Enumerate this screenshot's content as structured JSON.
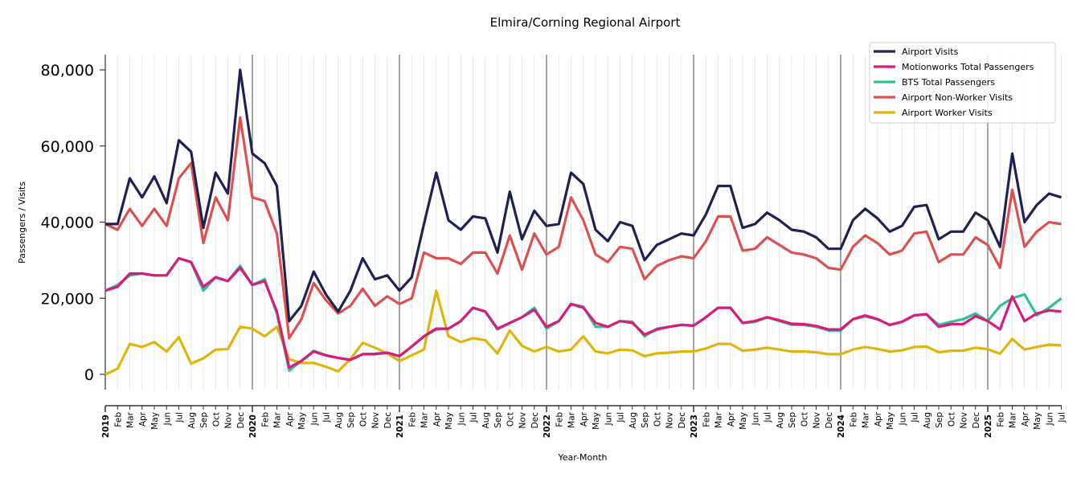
{
  "chart_data": {
    "type": "line",
    "title": "Elmira/Corning Regional Airport",
    "xlabel": "Year-Month",
    "ylabel": "Passengers / Visits",
    "ylim": [
      -8000,
      84000
    ],
    "yticks": [
      0,
      20000,
      40000,
      60000,
      80000
    ],
    "ytick_labels": [
      "0",
      "20,000",
      "40,000",
      "60,000",
      "80,000"
    ],
    "grid": "vertical monthly",
    "legend_position": "top-right",
    "x_labels": [
      "2019",
      "Feb",
      "Mar",
      "Apr",
      "May",
      "Jun",
      "Jul",
      "Aug",
      "Sep",
      "Oct",
      "Nov",
      "Dec",
      "2020",
      "Feb",
      "Mar",
      "Apr",
      "May",
      "Jun",
      "Jul",
      "Aug",
      "Sep",
      "Oct",
      "Nov",
      "Dec",
      "2021",
      "Feb",
      "Mar",
      "Apr",
      "May",
      "Jun",
      "Jul",
      "Aug",
      "Sep",
      "Oct",
      "Nov",
      "Dec",
      "2022",
      "Feb",
      "Mar",
      "Apr",
      "May",
      "Jun",
      "Jul",
      "Aug",
      "Sep",
      "Oct",
      "Nov",
      "Dec",
      "2023",
      "Feb",
      "Mar",
      "Apr",
      "May",
      "Jun",
      "Jul",
      "Aug",
      "Sep",
      "Oct",
      "Nov",
      "Dec",
      "2024",
      "Feb",
      "Mar",
      "Apr",
      "May",
      "Jun",
      "Jul",
      "Aug",
      "Sep",
      "Oct",
      "Nov",
      "Dec",
      "2025",
      "Feb",
      "Mar",
      "Apr",
      "May",
      "Jun",
      "Jul"
    ],
    "series": [
      {
        "name": "Airport Visits",
        "color": "#1f2150",
        "values": [
          39500,
          39500,
          51500,
          46500,
          52000,
          45000,
          61500,
          58500,
          38500,
          53000,
          47500,
          80000,
          58000,
          55500,
          49500,
          14000,
          18000,
          27000,
          21000,
          16500,
          22000,
          30500,
          25000,
          26000,
          22000,
          25500,
          39500,
          53000,
          40500,
          38000,
          41500,
          41000,
          32000,
          48000,
          35500,
          43000,
          39000,
          39500,
          53000,
          50000,
          38000,
          35000,
          40000,
          39000,
          30000,
          34000,
          35500,
          37000,
          36500,
          42000,
          49500,
          49500,
          38500,
          39500,
          42500,
          40500,
          38000,
          37500,
          36000,
          33000,
          33000,
          40500,
          43500,
          41000,
          37500,
          39000,
          44000,
          44500,
          35500,
          37500,
          37500,
          42500,
          40500,
          33500,
          58000,
          40000,
          44500,
          47500,
          46500
        ]
      },
      {
        "name": "Motionworks Total Passengers",
        "color": "#d81b7d",
        "values": [
          22000,
          23000,
          26500,
          26500,
          26000,
          26000,
          30500,
          29500,
          23000,
          25500,
          24500,
          28000,
          23500,
          24500,
          16500,
          1800,
          3500,
          6000,
          5000,
          4300,
          3800,
          5300,
          5300,
          5700,
          4800,
          7300,
          10000,
          12000,
          12000,
          14000,
          17500,
          16500,
          12000,
          13500,
          15000,
          17000,
          12500,
          14000,
          18500,
          17500,
          13500,
          12500,
          14000,
          13500,
          10500,
          11800,
          12500,
          13000,
          12800,
          15000,
          17500,
          17500,
          13500,
          14000,
          15000,
          14200,
          13300,
          13200,
          12700,
          11800,
          11800,
          14500,
          15500,
          14500,
          13000,
          13800,
          15500,
          15800,
          12500,
          13200,
          13200,
          15300,
          14000,
          11800,
          20500,
          14000,
          16000,
          16800,
          16500
        ]
      },
      {
        "name": "BTS Total Passengers",
        "color": "#2ec28f",
        "values": [
          22000,
          23500,
          26000,
          26500,
          26000,
          26000,
          30500,
          29500,
          22000,
          25500,
          24500,
          28500,
          23500,
          25000,
          16000,
          1000,
          3500,
          6200,
          5000,
          4300,
          3800,
          5300,
          5400,
          5700,
          4800,
          7300,
          10000,
          11800,
          12000,
          14000,
          17500,
          16500,
          11800,
          13500,
          15000,
          17500,
          12000,
          14000,
          18500,
          17800,
          12500,
          12500,
          14000,
          13800,
          10000,
          12000,
          12500,
          13000,
          12800,
          15000,
          17500,
          17500,
          13500,
          13800,
          15000,
          14000,
          13000,
          13000,
          12500,
          11500,
          11500,
          14500,
          15200,
          14500,
          13000,
          13800,
          15500,
          15800,
          13000,
          13800,
          14500,
          16000,
          14000,
          18000,
          20000,
          21000,
          15500,
          17500,
          20000
        ]
      },
      {
        "name": "Airport Non-Worker Visits",
        "color": "#dc5050",
        "values": [
          39500,
          38000,
          43500,
          39000,
          43500,
          39000,
          51500,
          55500,
          34500,
          46500,
          40500,
          67500,
          46500,
          45500,
          37000,
          9500,
          14500,
          24000,
          19500,
          16000,
          18000,
          22500,
          18000,
          20500,
          18500,
          20000,
          32000,
          30500,
          30500,
          29000,
          32000,
          32000,
          26500,
          36500,
          27500,
          37000,
          31500,
          33500,
          46500,
          40500,
          31500,
          29500,
          33500,
          33000,
          25000,
          28500,
          30000,
          31000,
          30500,
          35000,
          41500,
          41500,
          32500,
          33000,
          36000,
          34000,
          32000,
          31500,
          30500,
          28000,
          27500,
          33500,
          36500,
          34500,
          31500,
          32500,
          37000,
          37500,
          29500,
          31500,
          31500,
          36000,
          34000,
          28000,
          48500,
          33500,
          37500,
          40000,
          39500
        ]
      },
      {
        "name": "Airport Worker Visits",
        "color": "#e0b40c",
        "values": [
          0,
          1500,
          8000,
          7200,
          8500,
          6000,
          9800,
          2800,
          4200,
          6500,
          6600,
          12500,
          12000,
          10000,
          12500,
          4000,
          3000,
          3000,
          2000,
          800,
          4000,
          8300,
          7000,
          5500,
          3500,
          5000,
          6500,
          22000,
          10000,
          8500,
          9500,
          9000,
          5500,
          11500,
          7500,
          6000,
          7200,
          6000,
          6500,
          10000,
          6000,
          5500,
          6500,
          6300,
          4800,
          5500,
          5700,
          6000,
          6000,
          6800,
          8000,
          8000,
          6200,
          6500,
          7000,
          6500,
          6000,
          6000,
          5800,
          5300,
          5300,
          6500,
          7200,
          6700,
          6000,
          6300,
          7200,
          7300,
          5800,
          6200,
          6200,
          7000,
          6600,
          5400,
          9300,
          6500,
          7200,
          7800,
          7600
        ]
      }
    ]
  }
}
